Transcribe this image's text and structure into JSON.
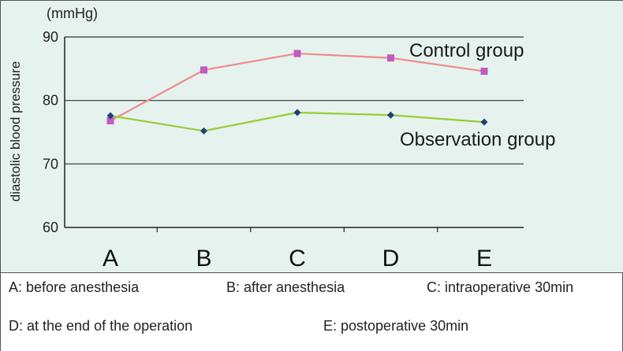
{
  "chart_data": {
    "type": "line",
    "unit_label": "(mmHg)",
    "ylabel": "diastolic blood pressure",
    "ylim": [
      60,
      90
    ],
    "yticks": [
      60,
      70,
      80,
      90
    ],
    "categories": [
      "A",
      "B",
      "C",
      "D",
      "E"
    ],
    "grid": true,
    "series": [
      {
        "name": "Control group",
        "color": "#f08a8a",
        "marker_color": "#c05bc0",
        "marker": "square",
        "values": [
          76.8,
          84.8,
          87.4,
          86.7,
          84.6
        ]
      },
      {
        "name": "Observation group",
        "color": "#99cc33",
        "marker_color": "#1f3f7a",
        "marker": "diamond",
        "values": [
          77.6,
          75.2,
          78.1,
          77.7,
          76.6
        ]
      }
    ]
  },
  "legend": {
    "A": "A: before anesthesia",
    "B": "B: after anesthesia",
    "C": "C: intraoperative 30min",
    "D": "D: at the end of the operation",
    "E": "E: postoperative 30min"
  }
}
